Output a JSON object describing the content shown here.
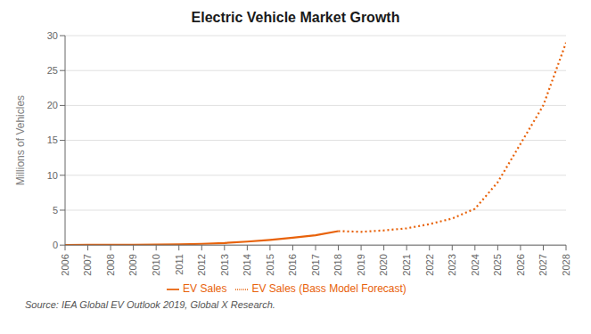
{
  "chart_data": {
    "type": "line",
    "title": "Electric Vehicle Market Growth",
    "y_label": "Millions of Vehicles",
    "annotations": [
      "Source: IEA Global EV Outlook 2019, Global X Research."
    ],
    "x": [
      2006,
      2007,
      2008,
      2009,
      2010,
      2011,
      2012,
      2013,
      2014,
      2015,
      2016,
      2017,
      2018,
      2019,
      2020,
      2021,
      2022,
      2023,
      2024,
      2025,
      2026,
      2027,
      2028
    ],
    "series": [
      {
        "name": "EV Sales",
        "color": "#E8620A",
        "line_style": "solid",
        "values": [
          0.02,
          0.03,
          0.04,
          0.05,
          0.07,
          0.1,
          0.18,
          0.3,
          0.5,
          0.75,
          1.05,
          1.4,
          2.0,
          null,
          null,
          null,
          null,
          null,
          null,
          null,
          null,
          null,
          null
        ]
      },
      {
        "name": "EV Sales (Bass Model Forecast)",
        "color": "#E8620A",
        "line_style": "dotted",
        "values": [
          null,
          null,
          null,
          null,
          null,
          null,
          null,
          null,
          null,
          null,
          null,
          null,
          2.0,
          1.9,
          2.1,
          2.4,
          3.0,
          3.8,
          5.2,
          9.0,
          14.5,
          20.0,
          29.0
        ]
      }
    ],
    "xlim": [
      2006,
      2028
    ],
    "xticks": [
      2006,
      2007,
      2008,
      2009,
      2010,
      2011,
      2012,
      2013,
      2014,
      2015,
      2016,
      2017,
      2018,
      2019,
      2020,
      2021,
      2022,
      2023,
      2024,
      2025,
      2026,
      2027,
      2028
    ],
    "ylim": [
      0,
      30
    ],
    "yticks": [
      0,
      5,
      10,
      15,
      20,
      25,
      30
    ],
    "grid": true,
    "legend": "bottom"
  }
}
